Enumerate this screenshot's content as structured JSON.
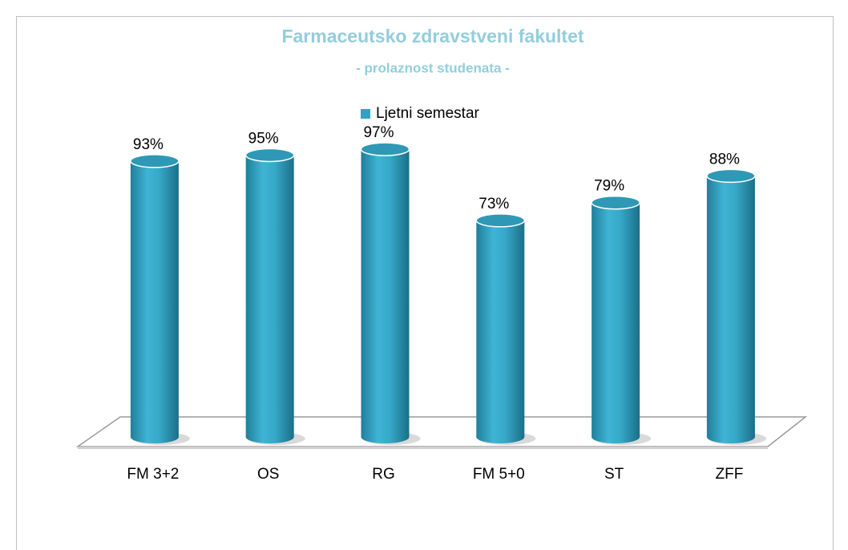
{
  "chart_data": {
    "type": "bar",
    "title": "Farmaceutsko zdravstveni fakultet",
    "subtitle": "- prolaznost studenata -",
    "categories": [
      "FM 3+2",
      "OS",
      "RG",
      "FM 5+0",
      "ST",
      "ZFF"
    ],
    "series": [
      {
        "name": "Ljetni semestar",
        "color": "#31a3c2",
        "values": [
          93,
          95,
          97,
          73,
          79,
          88
        ],
        "value_labels": [
          "93%",
          "95%",
          "97%",
          "73%",
          "79%",
          "88%"
        ]
      }
    ],
    "ylim": [
      0,
      100
    ],
    "legend": "top"
  }
}
